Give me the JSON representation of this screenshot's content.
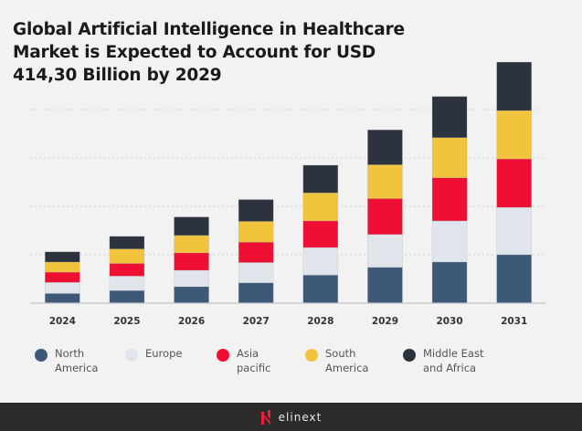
{
  "title": "Global Artificial Intelligence in Healthcare Market is Expected to Account for USD 414,30 Billion by 2029",
  "chart_data": {
    "type": "bar",
    "stacked": true,
    "title": "Global Artificial Intelligence in Healthcare Market is Expected to Account for USD 414,30 Billion by 2029",
    "xlabel": "",
    "ylabel": "",
    "categories": [
      "2024",
      "2025",
      "2026",
      "2027",
      "2028",
      "2029",
      "2030",
      "2031"
    ],
    "ylim": [
      0,
      500
    ],
    "y_tick_labels_shown": false,
    "grid": "horizontal dotted",
    "gridlines": [
      100,
      200,
      300,
      400
    ],
    "legend_position": "bottom",
    "series": [
      {
        "name": "North America",
        "color": "#3e5878",
        "values": [
          20,
          26,
          34,
          42,
          58,
          74,
          85,
          100
        ]
      },
      {
        "name": "Europe",
        "color": "#e0e5ec",
        "values": [
          23,
          30,
          34,
          42,
          57,
          68,
          85,
          98
        ]
      },
      {
        "name": "Asia pacific",
        "color": "#ee0f33",
        "values": [
          21,
          26,
          36,
          42,
          55,
          74,
          89,
          100
        ]
      },
      {
        "name": "South America",
        "color": "#f2c43d",
        "values": [
          21,
          30,
          36,
          43,
          58,
          70,
          83,
          100
        ]
      },
      {
        "name": "Middle East and Africa",
        "color": "#2c323e",
        "values": [
          21,
          26,
          38,
          45,
          57,
          72,
          85,
          100
        ]
      }
    ]
  },
  "legend": [
    {
      "label": "North\nAmerica",
      "color": "#3e5878"
    },
    {
      "label": "Europe",
      "color": "#e0e5ec"
    },
    {
      "label": "Asia\npacific",
      "color": "#ee0f33"
    },
    {
      "label": "South\nAmerica",
      "color": "#f2c43d"
    },
    {
      "label": "Middle East\nand Africa",
      "color": "#2c323e"
    }
  ],
  "footer": {
    "logo": "elinext",
    "logo_color": "#ee1b3a"
  }
}
